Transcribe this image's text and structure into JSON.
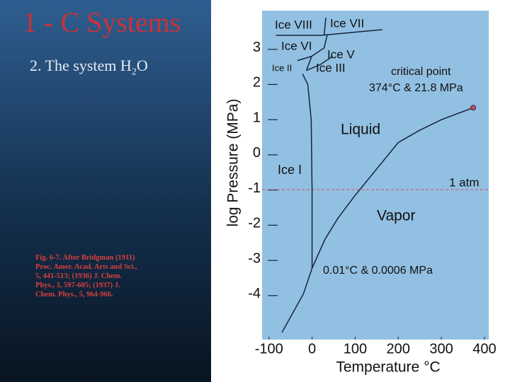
{
  "slide": {
    "title": "1 - C Systems",
    "subtitle": [
      "2. The system H",
      "2",
      "O"
    ],
    "caption": "Fig. 6-7. After Bridgman (1911) Proc. Amer. Acad. Arts and Sci., 5, 441-513; (1936) J. Chem. Phys., 3, 597-605; (1937) J. Chem. Phys., 5, 964-966."
  },
  "chart_data": {
    "type": "line",
    "xlabel": "Temperature  °C",
    "ylabel": "log Pressure (MPa)",
    "xlim": [
      -116,
      410
    ],
    "ylim": [
      -5.25,
      4.1
    ],
    "xticks": [
      -100,
      0,
      100,
      200,
      300,
      400
    ],
    "yticks": [
      3,
      2,
      1,
      0,
      -1,
      -2,
      -3,
      -4
    ],
    "line_color": "#16233a",
    "background": "#92c0e2",
    "series": [
      {
        "x": [
          -70,
          -45,
          -20,
          0.01
        ],
        "values": [
          -5.05,
          -4.5,
          -3.95,
          -3.22
        ]
      },
      {
        "x": [
          0.01,
          0,
          -2,
          -10,
          -22
        ],
        "values": [
          -3.22,
          -1,
          1,
          2,
          2.3
        ]
      },
      {
        "x": [
          0.01,
          30,
          60,
          100,
          150,
          200,
          250,
          300,
          374
        ],
        "values": [
          -3.22,
          -2.4,
          -1.8,
          -1.15,
          -0.4,
          0.35,
          0.7,
          1.0,
          1.34
        ]
      },
      {
        "x": [
          -84,
          23,
          163
        ],
        "values": [
          3.4,
          3.4,
          3.56
        ]
      },
      {
        "x": [
          32,
          28
        ],
        "values": [
          3.9,
          3.4
        ]
      },
      {
        "x": [
          -13,
          -1,
          28,
          35
        ],
        "values": [
          2.4,
          2.8,
          3.04,
          3.4
        ]
      },
      {
        "x": [
          -34,
          -1
        ],
        "values": [
          2.68,
          2.8
        ]
      },
      {
        "x": [
          -13,
          18,
          48
        ],
        "values": [
          2.4,
          2.56,
          2.8
        ]
      }
    ],
    "hline": -0.99,
    "hline_color": "#d05060",
    "point_color": "#d04070",
    "annotations": [
      "Ice VIII",
      "Ice VII",
      "Ice VI",
      "Ice V",
      "Ice II",
      "Ice III",
      "critical point",
      "374°C  & 21.8 MPa",
      "Liquid",
      "Ice I",
      "1 atm",
      "Vapor",
      "0.01°C  & 0.0006 MPa"
    ]
  }
}
